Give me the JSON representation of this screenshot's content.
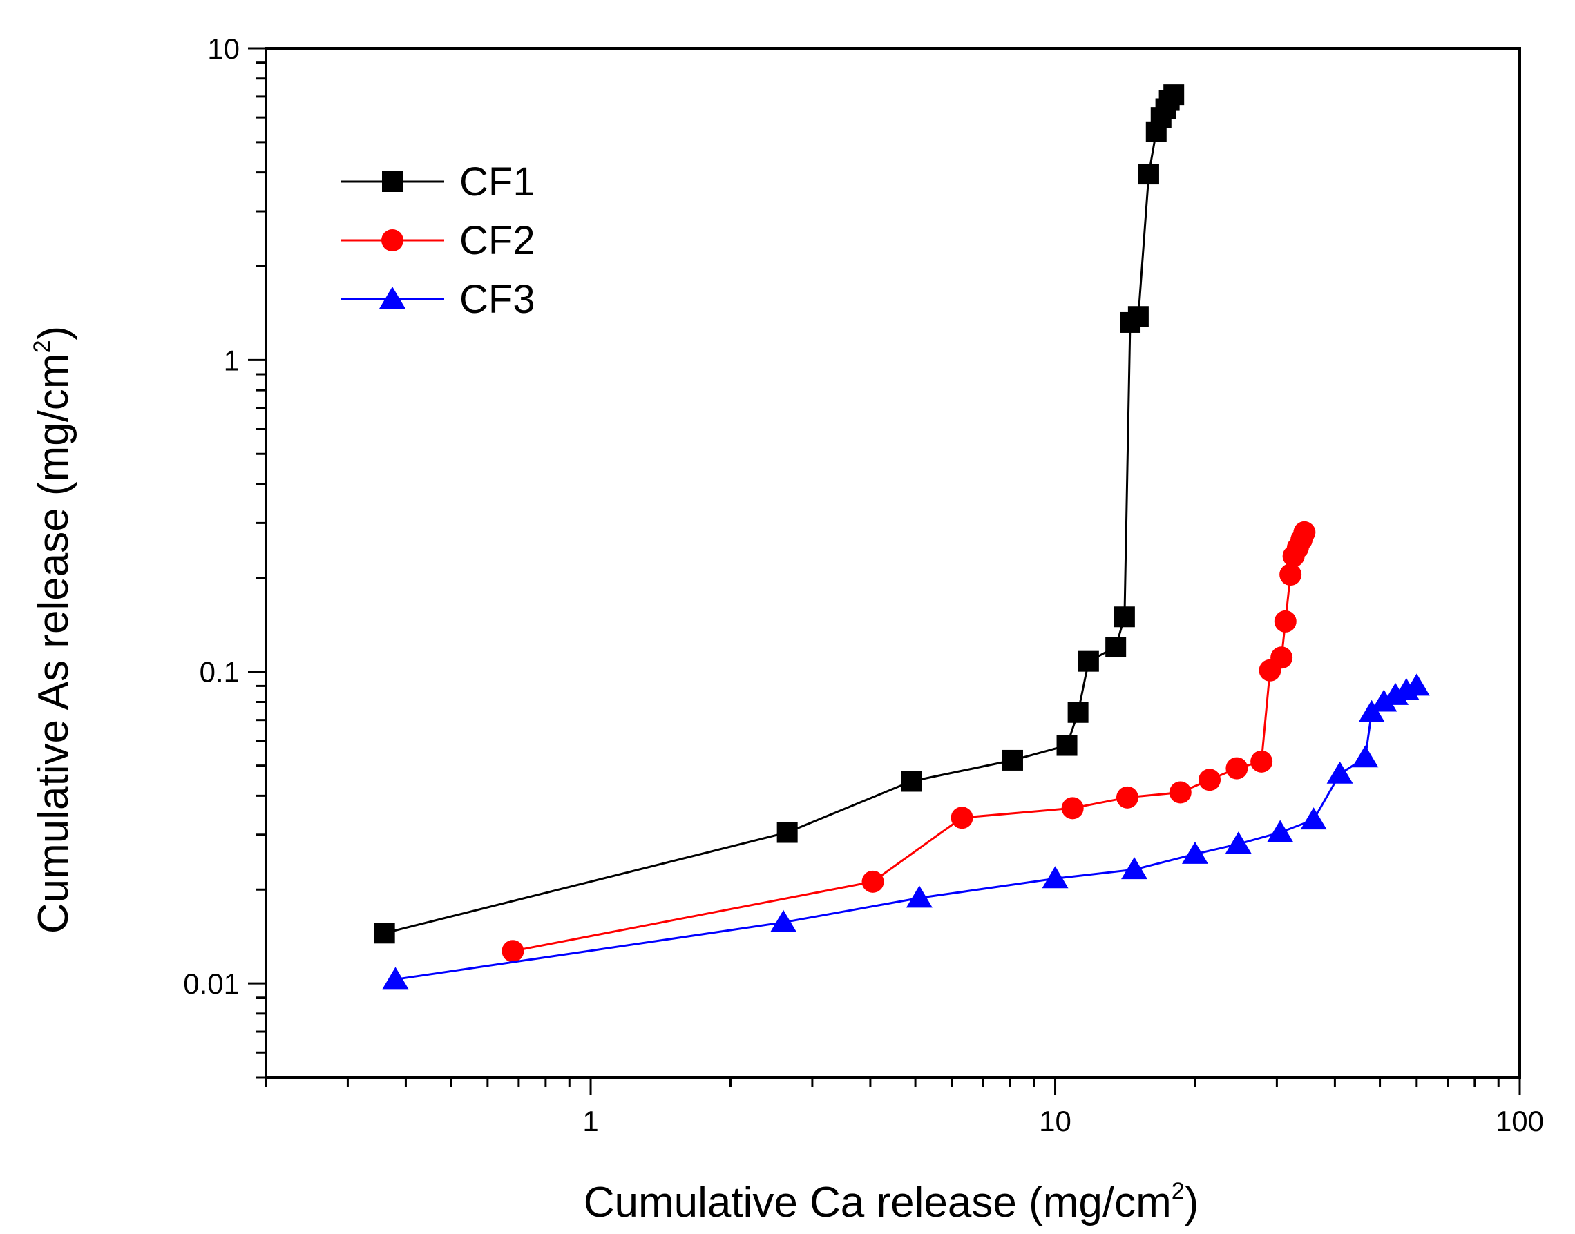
{
  "chart_data": {
    "type": "scatter",
    "xscale": "log",
    "yscale": "log",
    "xlim": [
      0.2,
      100
    ],
    "ylim": [
      0.005,
      10
    ],
    "x_ticks": [
      {
        "value": 1,
        "label": "1"
      },
      {
        "value": 10,
        "label": "10"
      },
      {
        "value": 100,
        "label": "100"
      }
    ],
    "y_ticks": [
      {
        "value": 0.01,
        "label": "0.01"
      },
      {
        "value": 0.1,
        "label": "0.1"
      },
      {
        "value": 1,
        "label": "1"
      },
      {
        "value": 10,
        "label": "10"
      }
    ],
    "xlabel": {
      "main": "Cumulative Ca release (mg/cm",
      "sup": "2",
      "end": ")"
    },
    "ylabel": {
      "main": "Cumulative As release (mg/cm",
      "sup": "2",
      "end": ")"
    },
    "grid": false,
    "legend_position": "top-left",
    "series": [
      {
        "name": "CF1",
        "color": "#000000",
        "marker": "square",
        "x": [
          0.36,
          2.65,
          4.9,
          8.1,
          10.6,
          11.2,
          11.8,
          13.5,
          14.1,
          14.5,
          15.1,
          15.9,
          16.5,
          16.9,
          17.3,
          17.6,
          18.0
        ],
        "y": [
          0.0145,
          0.0305,
          0.0445,
          0.052,
          0.058,
          0.074,
          0.108,
          0.12,
          0.15,
          1.32,
          1.38,
          3.95,
          5.4,
          6.0,
          6.4,
          6.8,
          7.1
        ]
      },
      {
        "name": "CF2",
        "color": "#ff0000",
        "marker": "circle",
        "x": [
          0.68,
          4.05,
          6.3,
          10.9,
          14.3,
          18.6,
          21.5,
          24.6,
          27.8,
          29.0,
          30.7,
          31.3,
          32.1,
          32.6,
          33.3,
          33.9,
          34.4
        ],
        "y": [
          0.0127,
          0.0212,
          0.034,
          0.0365,
          0.0395,
          0.041,
          0.045,
          0.049,
          0.0515,
          0.101,
          0.111,
          0.145,
          0.205,
          0.235,
          0.25,
          0.265,
          0.28
        ]
      },
      {
        "name": "CF3",
        "color": "#0000ff",
        "marker": "triangle",
        "x": [
          0.38,
          2.6,
          5.1,
          10.0,
          14.8,
          20.0,
          24.8,
          30.5,
          36.0,
          41.0,
          46.5,
          48.0,
          51.0,
          54.0,
          57.0,
          60.0
        ],
        "y": [
          0.0103,
          0.0157,
          0.0188,
          0.0217,
          0.0232,
          0.026,
          0.028,
          0.0305,
          0.0335,
          0.047,
          0.053,
          0.074,
          0.08,
          0.084,
          0.087,
          0.09
        ]
      }
    ]
  }
}
